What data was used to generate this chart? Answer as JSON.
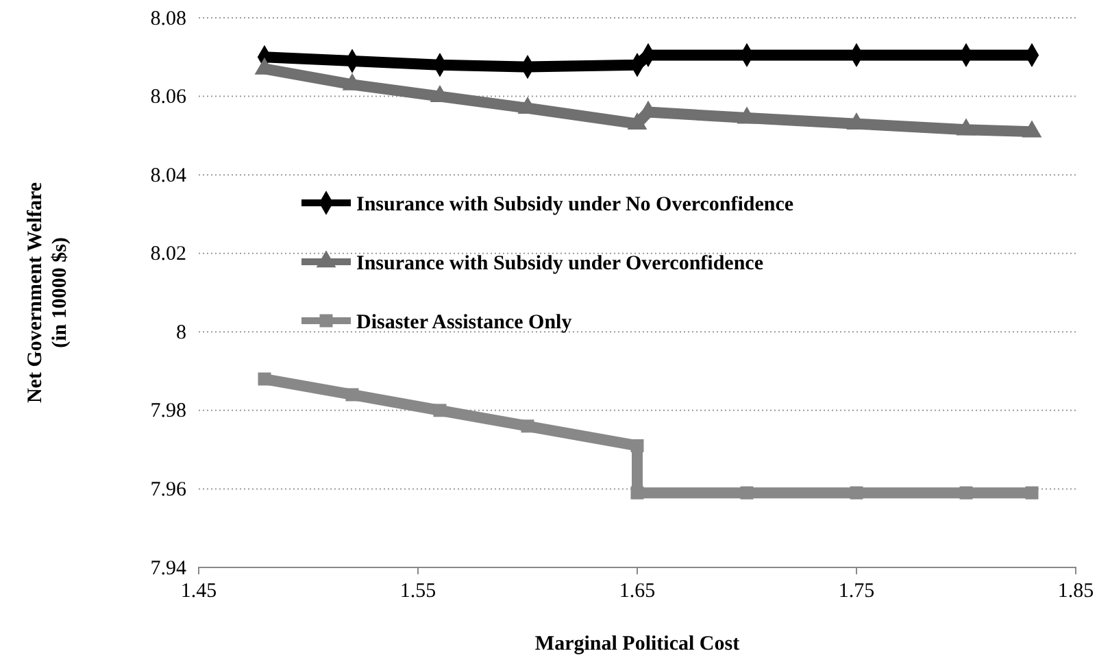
{
  "chart_data": {
    "type": "line",
    "xlabel": "Marginal Political Cost",
    "ylabel": "Net Government Welfare (in 10000 $s)",
    "xlim": [
      1.45,
      1.85
    ],
    "xticks": [
      1.45,
      1.55,
      1.65,
      1.75,
      1.85
    ],
    "ylim": [
      7.94,
      8.08
    ],
    "yticks": [
      7.94,
      7.96,
      7.98,
      8,
      8.02,
      8.04,
      8.06,
      8.08
    ],
    "grid": "y",
    "legend": "left",
    "line_style": "solid",
    "series": [
      {
        "name": "Insurance with Subsidy under No Overconfidence",
        "color": "#000000",
        "marker": "diamond",
        "x": [
          1.48,
          1.52,
          1.56,
          1.6,
          1.65,
          1.655,
          1.7,
          1.75,
          1.8,
          1.83
        ],
        "values": [
          8.07,
          8.069,
          8.068,
          8.0675,
          8.068,
          8.0705,
          8.0705,
          8.0705,
          8.0705,
          8.0705
        ]
      },
      {
        "name": "Insurance with Subsidy under Overconfidence",
        "color": "#707070",
        "marker": "triangle",
        "x": [
          1.48,
          1.52,
          1.56,
          1.6,
          1.65,
          1.655,
          1.7,
          1.75,
          1.8,
          1.83
        ],
        "values": [
          8.067,
          8.063,
          8.06,
          8.057,
          8.053,
          8.056,
          8.0545,
          8.053,
          8.0515,
          8.051
        ]
      },
      {
        "name": "Disaster Assistance Only",
        "color": "#888888",
        "marker": "square",
        "x": [
          1.48,
          1.52,
          1.56,
          1.6,
          1.65,
          1.65,
          1.7,
          1.75,
          1.8,
          1.83
        ],
        "values": [
          7.988,
          7.984,
          7.98,
          7.976,
          7.971,
          7.959,
          7.959,
          7.959,
          7.959,
          7.959
        ]
      }
    ]
  }
}
